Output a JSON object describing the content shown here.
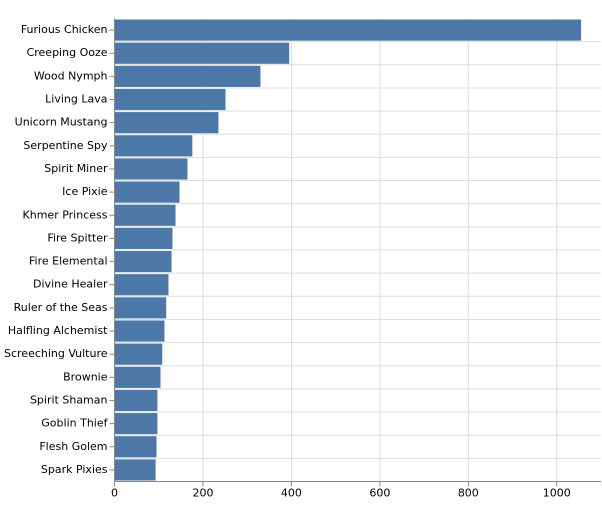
{
  "chart_data": {
    "type": "bar",
    "orientation": "horizontal",
    "categories": [
      "Furious Chicken",
      "Creeping Ooze",
      "Wood Nymph",
      "Living Lava",
      "Unicorn Mustang",
      "Serpentine Spy",
      "Spirit Miner",
      "Ice Pixie",
      "Khmer Princess",
      "Fire Spitter",
      "Fire Elemental",
      "Divine Healer",
      "Ruler of the Seas",
      "Halfling Alchemist",
      "Screeching Vulture",
      "Brownie",
      "Spirit Shaman",
      "Goblin Thief",
      "Flesh Golem",
      "Spark Pixies"
    ],
    "values": [
      1055,
      395,
      330,
      251,
      235,
      176,
      165,
      147,
      138,
      131,
      129,
      122,
      117,
      113,
      108,
      104,
      97,
      97,
      95,
      93
    ],
    "color": "#4c78a8",
    "xlim": [
      0,
      1100
    ],
    "xticks": [
      0,
      200,
      400,
      600,
      800,
      1000
    ],
    "grid": true
  }
}
